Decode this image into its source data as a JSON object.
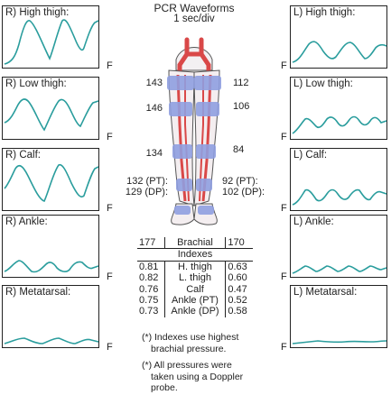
{
  "header": {
    "title": "PCR Waveforms",
    "subtitle": "1 sec/div"
  },
  "colors": {
    "waveform": "#2a9d9d",
    "cuff": "#8f9ee0",
    "artery": "#d94848",
    "vein": "#6a7ad8"
  },
  "panels": {
    "right": [
      {
        "label": "R) High thigh:",
        "unit": "F"
      },
      {
        "label": "R) Low thigh:",
        "unit": "F"
      },
      {
        "label": "R) Calf:",
        "unit": "F"
      },
      {
        "label": "R) Ankle:",
        "unit": "F"
      },
      {
        "label": "R) Metatarsal:",
        "unit": "F"
      }
    ],
    "left": [
      {
        "label": "L) High thigh:",
        "unit": "F"
      },
      {
        "label": "L) Low thigh:",
        "unit": "F"
      },
      {
        "label": "L) Calf:",
        "unit": "F"
      },
      {
        "label": "L) Ankle:",
        "unit": "F"
      },
      {
        "label": "L) Metatarsal:",
        "unit": "F"
      }
    ]
  },
  "pressures": {
    "right_high_thigh": "143",
    "right_low_thigh": "146",
    "right_calf": "134",
    "right_pt": "132 (PT):",
    "right_dp": "129 (DP):",
    "left_high_thigh": "112",
    "left_low_thigh": "106",
    "left_calf": "84",
    "left_pt": "92 (PT):",
    "left_dp": "102 (DP):"
  },
  "table": {
    "brachial_right": "177",
    "brachial_label": "Brachial",
    "brachial_left": "170",
    "indexes_header": "Indexes",
    "rows": [
      {
        "right": "0.81",
        "site": "H. thigh",
        "left": "0.63"
      },
      {
        "right": "0.82",
        "site": "L. thigh",
        "left": "0.60"
      },
      {
        "right": "0.76",
        "site": "Calf",
        "left": "0.47"
      },
      {
        "right": "0.75",
        "site": "Ankle (PT)",
        "left": "0.52"
      },
      {
        "right": "0.73",
        "site": "Ankle (DP)",
        "left": "0.58"
      }
    ]
  },
  "notes": {
    "note1_line1": "(*) Indexes use highest",
    "note1_line2": "brachial pressure.",
    "note2_line1": "(*) All pressures were",
    "note2_line2": "taken using a Doppler",
    "note2_line3": "probe."
  }
}
